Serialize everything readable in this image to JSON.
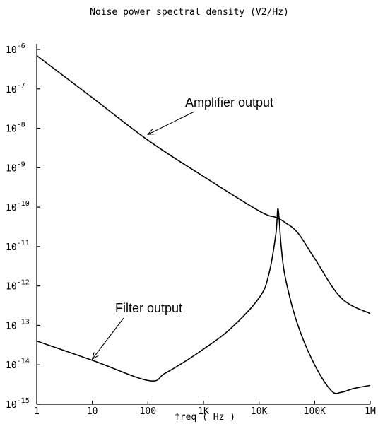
{
  "chart_data": {
    "type": "line",
    "title": "Noise power spectral density (V2/Hz)",
    "xlabel": "freq ( Hz )",
    "ylabel": "",
    "x_scale": "log",
    "y_scale": "log",
    "xlim": [
      1,
      1000000
    ],
    "ylim": [
      1e-15,
      1e-06
    ],
    "x_tick_labels": [
      "1",
      "10",
      "100",
      "1K",
      "10K",
      "100K",
      "1M"
    ],
    "x_tick_values": [
      1,
      10,
      100,
      1000,
      10000,
      100000,
      1000000
    ],
    "y_tick_base": "10",
    "y_tick_exponents": [
      "-6",
      "-7",
      "-8",
      "-9",
      "-10",
      "-11",
      "-12",
      "-13",
      "-14",
      "-15"
    ],
    "y_tick_values": [
      1e-06,
      1e-07,
      1e-08,
      1e-09,
      1e-10,
      1e-11,
      1e-12,
      1e-13,
      1e-14,
      1e-15
    ],
    "grid": false,
    "legend": "none",
    "series": [
      {
        "x": [
          1,
          10,
          100,
          1000,
          10000,
          20000,
          30000,
          50000,
          100000,
          300000,
          1000000
        ],
        "y": [
          7e-07,
          6e-08,
          5e-09,
          6e-10,
          8e-11,
          5.5e-11,
          4e-11,
          2.2e-11,
          5e-12,
          5e-13,
          2e-13
        ]
      },
      {
        "x": [
          1,
          10,
          100,
          200,
          500,
          1000,
          3000,
          10000,
          15000,
          20000,
          22000,
          25000,
          30000,
          50000,
          100000,
          200000,
          300000,
          500000,
          1000000
        ],
        "y": [
          4e-14,
          1.3e-14,
          4e-15,
          6e-15,
          1.3e-14,
          2.5e-14,
          8e-14,
          5e-13,
          2e-12,
          2e-11,
          9e-11,
          1e-11,
          1.5e-12,
          1e-13,
          1e-14,
          2.2e-15,
          2e-15,
          2.5e-15,
          3e-15
        ]
      }
    ],
    "annotations": [
      {
        "text": "Amplifier output",
        "points_to": {
          "x": 100,
          "y": 7e-09
        }
      },
      {
        "text": "Filter output",
        "points_to": {
          "x": 10,
          "y": 1.4e-14
        }
      }
    ]
  }
}
